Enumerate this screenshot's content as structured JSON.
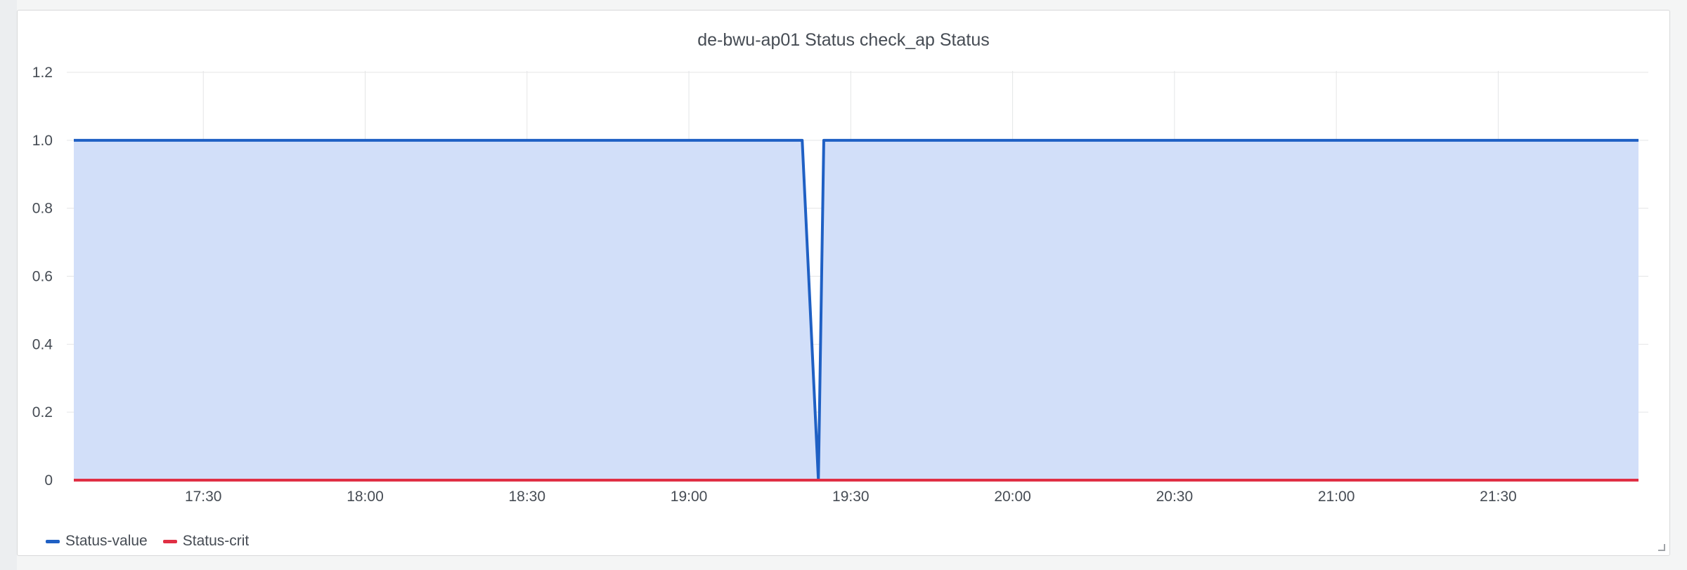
{
  "panel": {
    "title": "de-bwu-ap01 Status check_ap Status"
  },
  "chart_data": {
    "type": "line",
    "title": "de-bwu-ap01 Status check_ap Status",
    "xlabel": "",
    "ylabel": "",
    "x_axis": {
      "type": "time",
      "range": [
        "17:06",
        "21:56"
      ],
      "ticks": [
        "17:30",
        "18:00",
        "18:30",
        "19:00",
        "19:30",
        "20:00",
        "20:30",
        "21:00",
        "21:30"
      ]
    },
    "y_axis": {
      "range": [
        0,
        1.2
      ],
      "ticks": [
        "0",
        "0.2",
        "0.4",
        "0.6",
        "0.8",
        "1.0",
        "1.2"
      ]
    },
    "grid": true,
    "legend_placement": "bottom-left",
    "series": [
      {
        "name": "Status-value",
        "color": "#1f60c4",
        "fill": "#d2dff9",
        "points": [
          [
            "17:06",
            1
          ],
          [
            "19:21",
            1
          ],
          [
            "19:24",
            0
          ],
          [
            "19:25",
            1
          ],
          [
            "21:56",
            1
          ]
        ]
      },
      {
        "name": "Status-crit",
        "color": "#e02f44",
        "points": [
          [
            "17:06",
            0
          ],
          [
            "21:56",
            0
          ]
        ]
      }
    ]
  }
}
